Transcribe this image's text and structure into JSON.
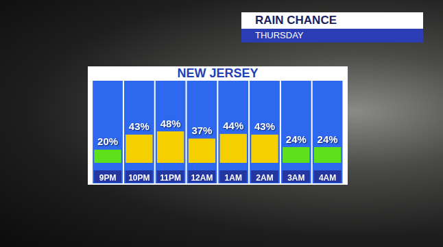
{
  "chart_data": {
    "type": "bar",
    "title": "NEW JERSEY",
    "header": {
      "title": "RAIN CHANCE",
      "subtitle": "THURSDAY"
    },
    "categories": [
      "9PM",
      "10PM",
      "11PM",
      "12AM",
      "1AM",
      "2AM",
      "3AM",
      "4AM"
    ],
    "values": [
      20,
      43,
      48,
      37,
      44,
      43,
      24,
      24
    ],
    "value_labels": [
      "20%",
      "43%",
      "48%",
      "37%",
      "44%",
      "43%",
      "24%",
      "24%"
    ],
    "colors": [
      "#5ee01b",
      "#f5cf00",
      "#f5cf00",
      "#f5cf00",
      "#f5cf00",
      "#f5cf00",
      "#5ee01b",
      "#5ee01b"
    ],
    "ylim": [
      0,
      100
    ],
    "grid": false,
    "data_labels": true,
    "tick_labels": "x"
  }
}
